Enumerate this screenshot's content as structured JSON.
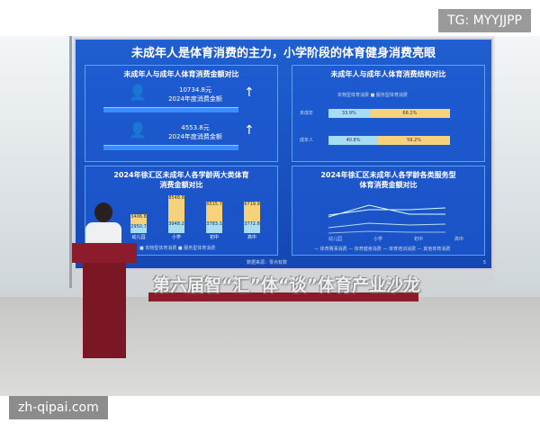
{
  "watermarks": {
    "top_right": "TG: MYYJJPP",
    "bottom_left": "zh-qipai.com"
  },
  "slide": {
    "title": "未成年人是体育消费的主力，小学阶段的体育健身消费亮眼",
    "panel1": {
      "title": "未成年人与成年人体育消费金额对比",
      "minor": {
        "amount": "10734.8元",
        "label": "2024年度消费金额"
      },
      "adult": {
        "amount": "4553.8元",
        "label": "2024年度消费金额"
      }
    },
    "panel2": {
      "title": "未成年人与成年人体育消费结构对比",
      "legend": [
        "实物型体育消费",
        "服务型体育消费"
      ],
      "rows": [
        {
          "label": "未成年",
          "values": [
            "33.9%",
            "66.1%"
          ],
          "pct": [
            33.9,
            66.1
          ]
        },
        {
          "label": "成年人",
          "values": [
            "40.8%",
            "59.2%"
          ],
          "pct": [
            40.8,
            59.2
          ]
        }
      ]
    },
    "panel3": {
      "title": "2024年徐汇区未成年人各学龄两大类体育消费金额对比",
      "categories": [
        "幼儿园",
        "小学",
        "初中",
        "高中"
      ],
      "service": [
        "3406.8",
        "8548.8",
        "6515.7",
        "6719.9"
      ],
      "physical": [
        "2950.7",
        "3948.2",
        "3783.1",
        "3772.8"
      ],
      "legend": [
        "实物型体育消费",
        "服务型体育消费"
      ]
    },
    "panel4": {
      "title": "2024年徐汇区未成年人各学龄各类服务型体育消费金额对比",
      "categories": [
        "幼儿园",
        "小学",
        "初中",
        "高中"
      ],
      "legend": [
        "体育赛事消费",
        "体育健身消费",
        "体育培训消费",
        "其他体育消费"
      ]
    },
    "source": "数据来源：零点有数",
    "page": "5"
  },
  "slogan": "第六届智“汇”体“谈”体育产业沙龙",
  "colors": {
    "screen": "#1a52c2",
    "service": "#f7d27c",
    "physical": "#a8dcf5",
    "podium": "#7b1624"
  }
}
